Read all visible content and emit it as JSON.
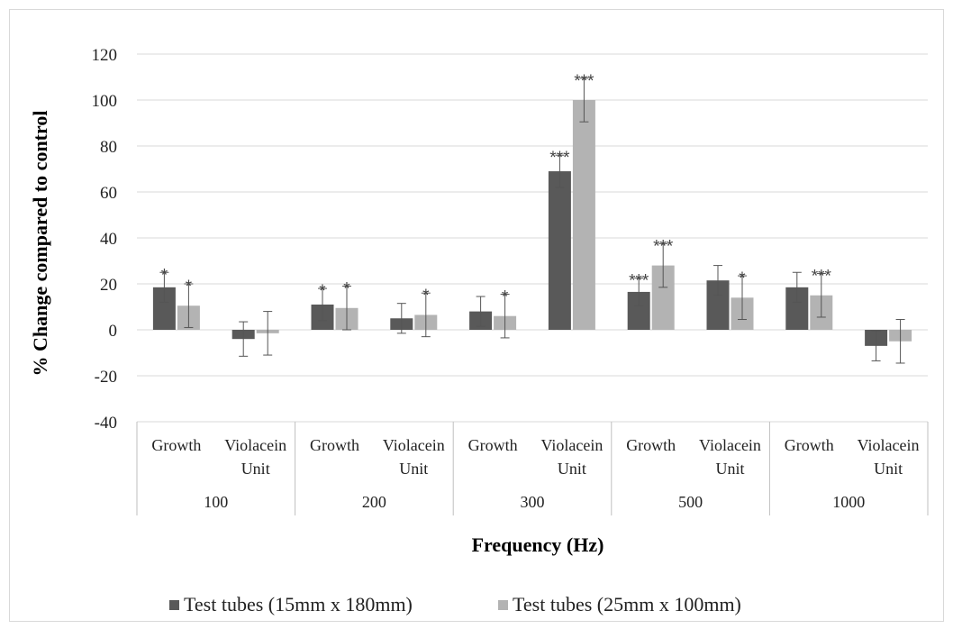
{
  "chart_data": {
    "type": "bar",
    "title": "",
    "xlabel": "Frequency (Hz)",
    "ylabel": "% Change compared to control",
    "ylim": [
      -40,
      120
    ],
    "yticks": [
      "120",
      "100",
      "80",
      "60",
      "40",
      "20",
      "0",
      "-20",
      "-40"
    ],
    "grid": true,
    "legend_position": "bottom",
    "groups": [
      {
        "label": "100",
        "categories": [
          "Growth",
          "Violacein Unit"
        ]
      },
      {
        "label": "200",
        "categories": [
          "Growth",
          "Violacein Unit"
        ]
      },
      {
        "label": "300",
        "categories": [
          "Growth",
          "Violacein Unit"
        ]
      },
      {
        "label": "500",
        "categories": [
          "Growth",
          "Violacein Unit"
        ]
      },
      {
        "label": "1000",
        "categories": [
          "Growth",
          "Violacein Unit"
        ]
      }
    ],
    "categories": [
      "100 Growth",
      "100 Violacein Unit",
      "200 Growth",
      "200 Violacein Unit",
      "300 Growth",
      "300 Violacein Unit",
      "500 Growth",
      "500 Violacein Unit",
      "1000 Growth",
      "1000 Violacein Unit"
    ],
    "series": [
      {
        "name": "Test tubes (15mm x 180mm)",
        "color": "#595959",
        "values": [
          18.5,
          -4,
          11,
          5,
          8,
          69,
          16.5,
          21.5,
          18.5,
          -7
        ],
        "errors": [
          6.5,
          7.5,
          7,
          6.5,
          6.5,
          7,
          6,
          6.5,
          6.5,
          6.5
        ],
        "significance": [
          "*",
          "",
          "*",
          "",
          "",
          "***",
          "***",
          "",
          "",
          ""
        ]
      },
      {
        "name": "Test tubes (25mm x 100mm)",
        "color": "#b3b3b3",
        "values": [
          10.5,
          -1.5,
          9.5,
          6.5,
          6,
          100,
          28,
          14,
          15,
          -5
        ],
        "errors": [
          9.5,
          9.5,
          9.5,
          9.5,
          9.5,
          9.5,
          9.5,
          9.5,
          9.5,
          9.5
        ],
        "significance": [
          "*",
          "",
          "*",
          "*",
          "*",
          "***",
          "***",
          "*",
          "***",
          ""
        ]
      }
    ]
  }
}
